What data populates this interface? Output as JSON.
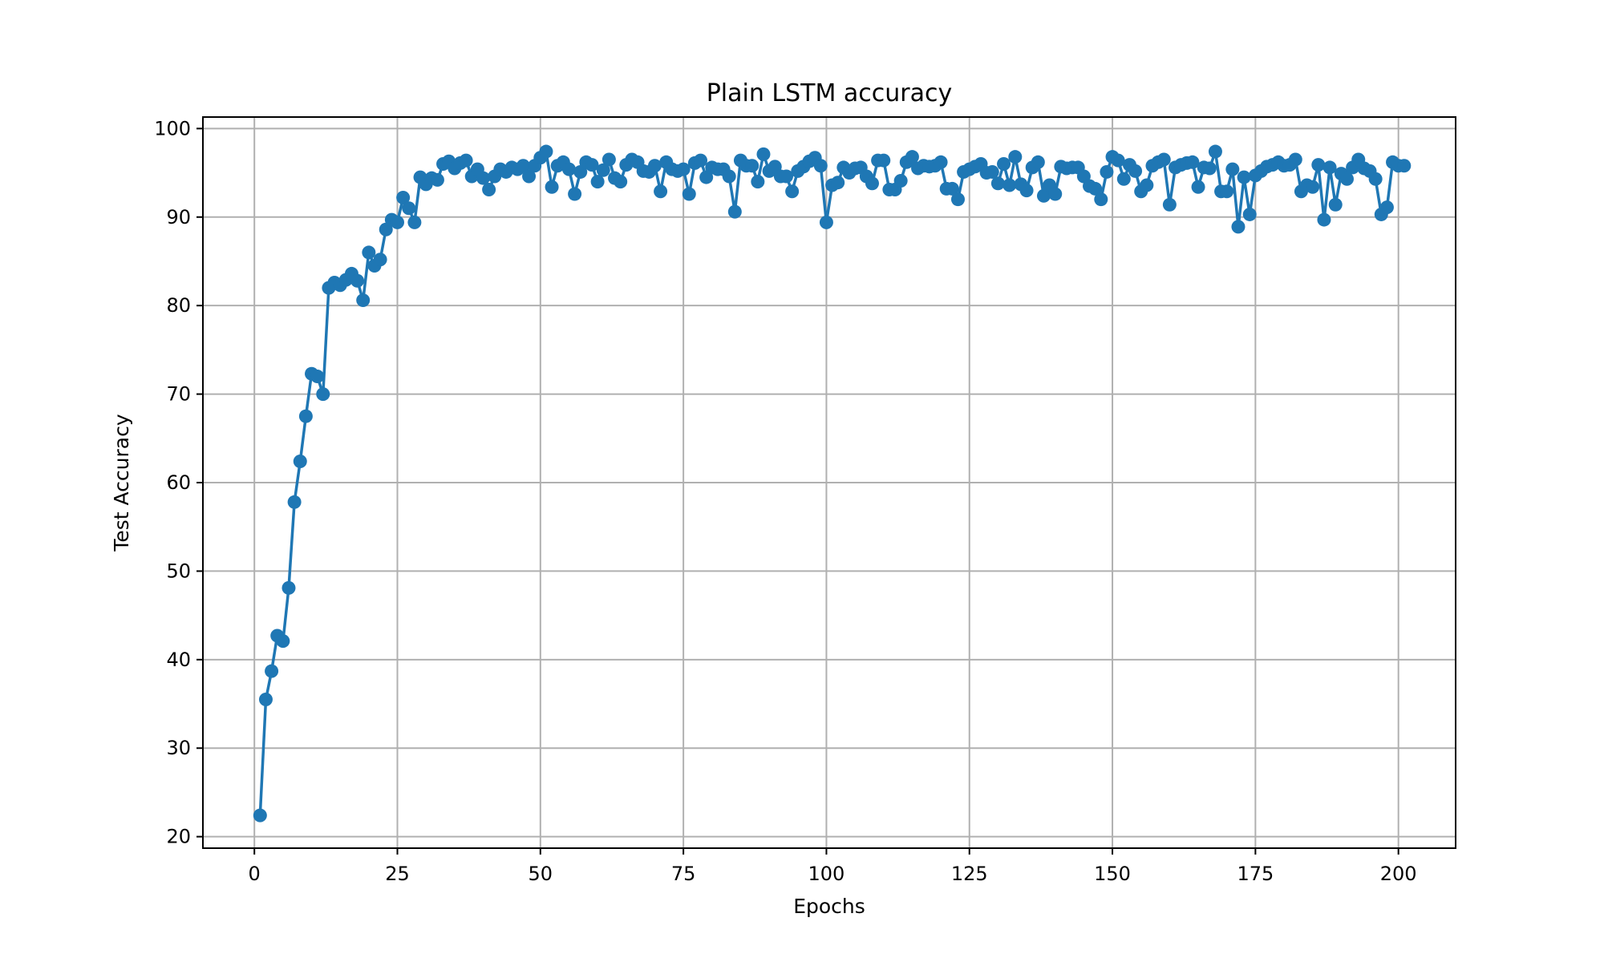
{
  "chart_data": {
    "type": "line",
    "title": "Plain LSTM accuracy",
    "xlabel": "Epochs",
    "ylabel": "Test Accuracy",
    "xlim": [
      -9,
      210
    ],
    "ylim": [
      18.7,
      101.3
    ],
    "xticks": [
      0,
      25,
      50,
      75,
      100,
      125,
      150,
      175,
      200
    ],
    "yticks": [
      20,
      30,
      40,
      50,
      60,
      70,
      80,
      90,
      100
    ],
    "grid": true,
    "markers": true,
    "series": [
      {
        "color": "#1f77b4",
        "x": [
          1,
          2,
          3,
          4,
          5,
          6,
          7,
          8,
          9,
          10,
          11,
          12,
          13,
          14,
          15,
          16,
          17,
          18,
          19,
          20,
          21,
          22,
          23,
          24,
          25,
          26,
          27,
          28,
          29,
          30,
          31,
          32,
          33,
          34,
          35,
          36,
          37,
          38,
          39,
          40,
          41,
          42,
          43,
          44,
          45,
          46,
          47,
          48,
          49,
          50,
          51,
          52,
          53,
          54,
          55,
          56,
          57,
          58,
          59,
          60,
          61,
          62,
          63,
          64,
          65,
          66,
          67,
          68,
          69,
          70,
          71,
          72,
          73,
          74,
          75,
          76,
          77,
          78,
          79,
          80,
          81,
          82,
          83,
          84,
          85,
          86,
          87,
          88,
          89,
          90,
          91,
          92,
          93,
          94,
          95,
          96,
          97,
          98,
          99,
          100,
          101,
          102,
          103,
          104,
          105,
          106,
          107,
          108,
          109,
          110,
          111,
          112,
          113,
          114,
          115,
          116,
          117,
          118,
          119,
          120,
          121,
          122,
          123,
          124,
          125,
          126,
          127,
          128,
          129,
          130,
          131,
          132,
          133,
          134,
          135,
          136,
          137,
          138,
          139,
          140,
          141,
          142,
          143,
          144,
          145,
          146,
          147,
          148,
          149,
          150,
          151,
          152,
          153,
          154,
          155,
          156,
          157,
          158,
          159,
          160,
          161,
          162,
          163,
          164,
          165,
          166,
          167,
          168,
          169,
          170,
          171,
          172,
          173,
          174,
          175,
          176,
          177,
          178,
          179,
          180,
          181,
          182,
          183,
          184,
          185,
          186,
          187,
          188,
          189,
          190,
          191,
          192,
          193,
          194,
          195,
          196,
          197,
          198,
          199,
          200,
          201
        ],
        "y": [
          22.4,
          35.5,
          38.7,
          42.7,
          42.1,
          48.1,
          57.8,
          62.4,
          67.5,
          72.3,
          72.0,
          70.0,
          82.0,
          82.6,
          82.3,
          82.9,
          83.6,
          82.8,
          80.6,
          86.0,
          84.5,
          85.2,
          88.6,
          89.7,
          89.4,
          92.2,
          91.0,
          89.4,
          94.5,
          93.7,
          94.4,
          94.2,
          96.0,
          96.3,
          95.5,
          96.1,
          96.4,
          94.6,
          95.4,
          94.4,
          93.1,
          94.6,
          95.4,
          95.1,
          95.6,
          95.4,
          95.8,
          94.6,
          95.8,
          96.7,
          97.4,
          93.4,
          95.8,
          96.2,
          95.4,
          92.6,
          95.1,
          96.2,
          95.9,
          94.0,
          95.3,
          96.5,
          94.4,
          94.0,
          95.9,
          96.5,
          96.2,
          95.2,
          95.1,
          95.8,
          92.9,
          96.2,
          95.4,
          95.2,
          95.4,
          92.6,
          96.1,
          96.4,
          94.5,
          95.6,
          95.4,
          95.4,
          94.6,
          90.6,
          96.4,
          95.8,
          95.8,
          94.0,
          97.1,
          95.2,
          95.7,
          94.6,
          94.6,
          92.9,
          95.2,
          95.7,
          96.3,
          96.7,
          95.8,
          89.4,
          93.6,
          93.9,
          95.6,
          95.0,
          95.5,
          95.6,
          94.6,
          93.8,
          96.4,
          96.4,
          93.1,
          93.1,
          94.1,
          96.2,
          96.8,
          95.5,
          95.8,
          95.7,
          95.8,
          96.2,
          93.2,
          93.2,
          92.0,
          95.1,
          95.4,
          95.7,
          96.0,
          95.0,
          95.1,
          93.8,
          96.0,
          93.6,
          96.8,
          93.7,
          93.0,
          95.6,
          96.2,
          92.4,
          93.6,
          92.6,
          95.7,
          95.5,
          95.6,
          95.6,
          94.6,
          93.5,
          93.2,
          92.0,
          95.1,
          96.8,
          96.4,
          94.3,
          95.9,
          95.2,
          92.9,
          93.6,
          95.8,
          96.2,
          96.5,
          91.4,
          95.6,
          95.9,
          96.1,
          96.2,
          93.4,
          95.6,
          95.5,
          97.4,
          92.9,
          92.9,
          95.4,
          88.9,
          94.5,
          90.3,
          94.7,
          95.2,
          95.7,
          95.9,
          96.2,
          95.8,
          95.9,
          96.5,
          92.9,
          93.6,
          93.4,
          95.9,
          89.7,
          95.6,
          91.4,
          94.9,
          94.3,
          95.6,
          96.5,
          95.5,
          95.2,
          94.3,
          90.3,
          91.1,
          96.2,
          95.8,
          95.8
        ]
      }
    ]
  }
}
